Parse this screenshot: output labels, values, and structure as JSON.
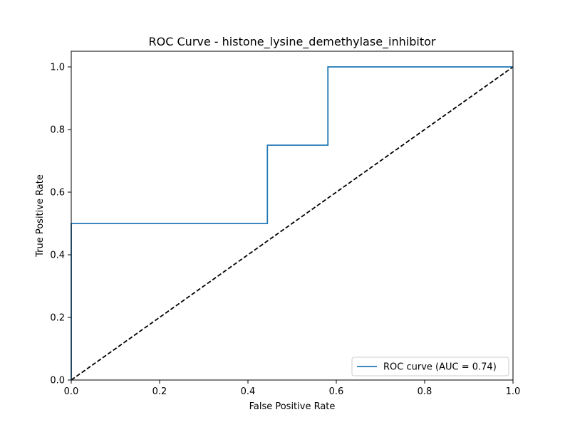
{
  "chart_data": {
    "type": "line",
    "title": "ROC Curve - histone_lysine_demethylase_inhibitor",
    "xlabel": "False Positive Rate",
    "ylabel": "True Positive Rate",
    "xlim": [
      0.0,
      1.0
    ],
    "ylim": [
      0.0,
      1.05
    ],
    "xticks": [
      "0.0",
      "0.2",
      "0.4",
      "0.6",
      "0.8",
      "1.0"
    ],
    "yticks": [
      "0.0",
      "0.2",
      "0.4",
      "0.6",
      "0.8",
      "1.0"
    ],
    "grid": false,
    "legend": {
      "position": "lower-right",
      "entries": [
        "ROC curve (AUC = 0.74)"
      ]
    },
    "series": [
      {
        "name": "ROC curve (AUC = 0.74)",
        "color": "#1f77b4",
        "style": "solid",
        "x": [
          0.0,
          0.0,
          0.0,
          0.444,
          0.444,
          0.581,
          0.581,
          1.0
        ],
        "y": [
          0.0,
          0.25,
          0.5,
          0.5,
          0.75,
          0.75,
          1.0,
          1.0
        ]
      }
    ],
    "reference_line": {
      "color": "#000000",
      "style": "dashed",
      "x": [
        0.0,
        1.0
      ],
      "y": [
        0.0,
        1.0
      ]
    }
  }
}
